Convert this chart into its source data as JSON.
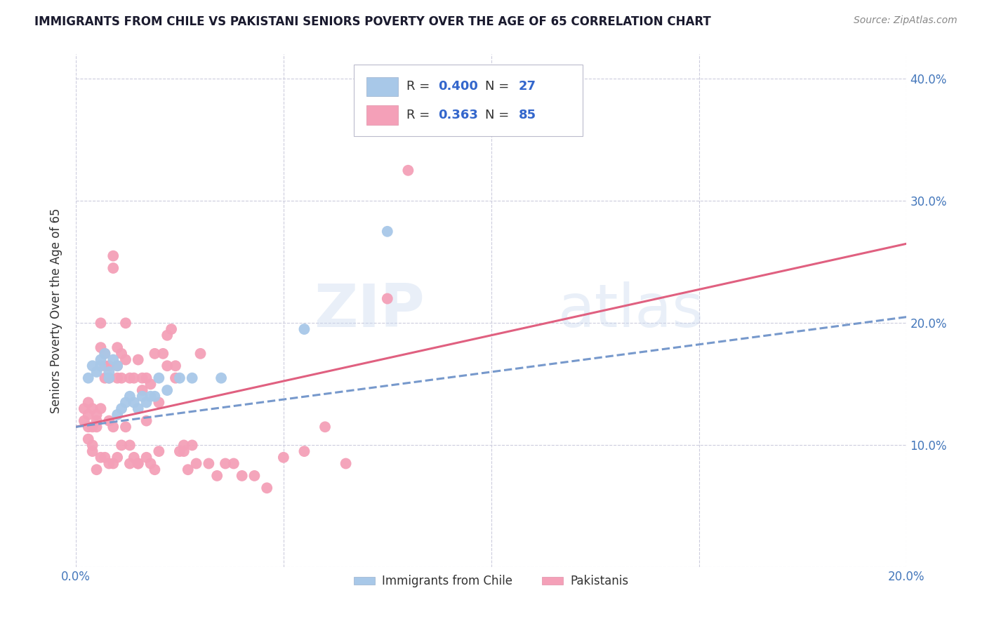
{
  "title": "IMMIGRANTS FROM CHILE VS PAKISTANI SENIORS POVERTY OVER THE AGE OF 65 CORRELATION CHART",
  "source": "Source: ZipAtlas.com",
  "ylabel": "Seniors Poverty Over the Age of 65",
  "xlim": [
    0.0,
    0.2
  ],
  "ylim": [
    0.0,
    0.42
  ],
  "xticks": [
    0.0,
    0.05,
    0.1,
    0.15,
    0.2
  ],
  "xtick_labels": [
    "0.0%",
    "",
    "",
    "",
    "20.0%"
  ],
  "yticks": [
    0.0,
    0.1,
    0.2,
    0.3,
    0.4
  ],
  "ytick_labels_right": [
    "",
    "10.0%",
    "20.0%",
    "30.0%",
    "40.0%"
  ],
  "legend_chile_R": "0.400",
  "legend_chile_N": "27",
  "legend_pak_R": "0.363",
  "legend_pak_N": "85",
  "chile_color": "#a8c8e8",
  "pak_color": "#f4a0b8",
  "chile_line_color": "#7799cc",
  "pak_line_color": "#e06080",
  "watermark": "ZIPatlas",
  "chile_scatter_x": [
    0.003,
    0.004,
    0.005,
    0.006,
    0.006,
    0.007,
    0.008,
    0.008,
    0.009,
    0.01,
    0.01,
    0.011,
    0.012,
    0.013,
    0.014,
    0.015,
    0.016,
    0.017,
    0.018,
    0.019,
    0.02,
    0.022,
    0.025,
    0.028,
    0.035,
    0.055,
    0.075
  ],
  "chile_scatter_y": [
    0.155,
    0.165,
    0.16,
    0.17,
    0.165,
    0.175,
    0.16,
    0.155,
    0.17,
    0.165,
    0.125,
    0.13,
    0.135,
    0.14,
    0.135,
    0.13,
    0.14,
    0.135,
    0.14,
    0.14,
    0.155,
    0.145,
    0.155,
    0.155,
    0.155,
    0.195,
    0.275
  ],
  "pak_scatter_x": [
    0.002,
    0.002,
    0.003,
    0.003,
    0.003,
    0.004,
    0.004,
    0.004,
    0.005,
    0.005,
    0.005,
    0.006,
    0.006,
    0.006,
    0.007,
    0.007,
    0.007,
    0.008,
    0.008,
    0.008,
    0.009,
    0.009,
    0.009,
    0.01,
    0.01,
    0.01,
    0.011,
    0.011,
    0.012,
    0.012,
    0.012,
    0.013,
    0.013,
    0.014,
    0.014,
    0.015,
    0.015,
    0.016,
    0.016,
    0.017,
    0.017,
    0.018,
    0.018,
    0.019,
    0.02,
    0.02,
    0.021,
    0.022,
    0.023,
    0.024,
    0.025,
    0.026,
    0.027,
    0.028,
    0.029,
    0.03,
    0.032,
    0.034,
    0.036,
    0.038,
    0.04,
    0.043,
    0.046,
    0.05,
    0.055,
    0.06,
    0.065,
    0.022,
    0.024,
    0.026,
    0.005,
    0.007,
    0.009,
    0.011,
    0.013,
    0.015,
    0.017,
    0.019,
    0.003,
    0.004,
    0.006,
    0.008,
    0.01,
    0.075,
    0.08
  ],
  "pak_scatter_y": [
    0.12,
    0.13,
    0.115,
    0.125,
    0.135,
    0.1,
    0.115,
    0.13,
    0.12,
    0.125,
    0.115,
    0.18,
    0.2,
    0.13,
    0.175,
    0.155,
    0.165,
    0.165,
    0.12,
    0.155,
    0.245,
    0.255,
    0.115,
    0.18,
    0.165,
    0.155,
    0.175,
    0.155,
    0.17,
    0.2,
    0.115,
    0.155,
    0.085,
    0.155,
    0.09,
    0.17,
    0.085,
    0.155,
    0.145,
    0.12,
    0.155,
    0.15,
    0.085,
    0.175,
    0.135,
    0.095,
    0.175,
    0.165,
    0.195,
    0.165,
    0.095,
    0.095,
    0.08,
    0.1,
    0.085,
    0.175,
    0.085,
    0.075,
    0.085,
    0.085,
    0.075,
    0.075,
    0.065,
    0.09,
    0.095,
    0.115,
    0.085,
    0.19,
    0.155,
    0.1,
    0.08,
    0.09,
    0.085,
    0.1,
    0.1,
    0.085,
    0.09,
    0.08,
    0.105,
    0.095,
    0.09,
    0.085,
    0.09,
    0.22,
    0.325
  ]
}
